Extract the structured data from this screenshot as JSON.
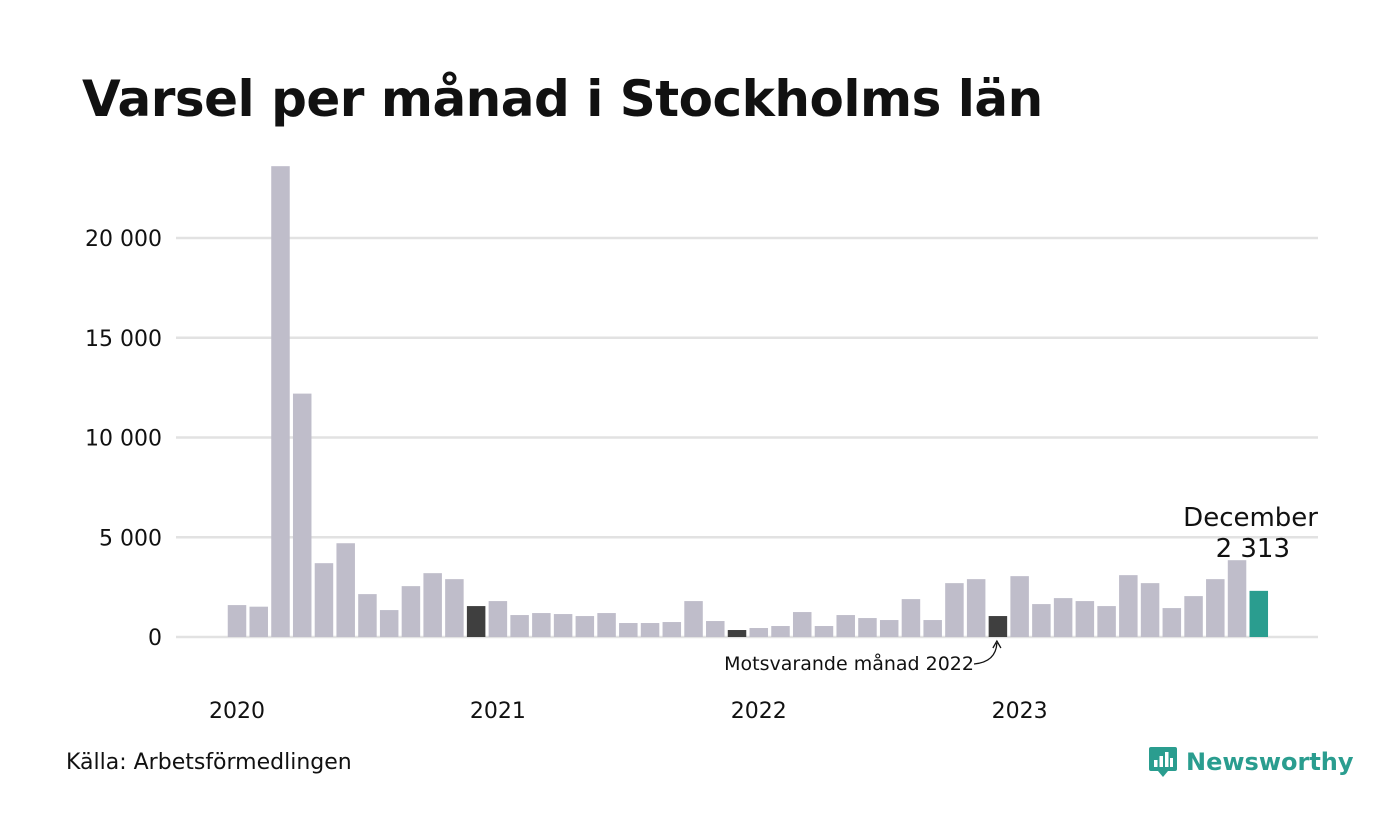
{
  "chart_data": {
    "type": "bar",
    "title": "Varsel per månad i Stockholms län",
    "x_tick_labels": [
      "2020",
      "2021",
      "2022",
      "2023"
    ],
    "y_tick_labels": [
      "0",
      "5 000",
      "10 000",
      "15 000",
      "20 000"
    ],
    "y_ticks": [
      0,
      5000,
      10000,
      15000,
      20000
    ],
    "ylim": [
      0,
      24000
    ],
    "grid": true,
    "start_month": "2020-01",
    "values": [
      1600,
      1520,
      23600,
      12200,
      3700,
      4700,
      2150,
      1350,
      2550,
      3200,
      2900,
      1550,
      1800,
      1100,
      1200,
      1150,
      1050,
      1200,
      700,
      700,
      750,
      1800,
      800,
      350,
      450,
      550,
      1250,
      550,
      1100,
      950,
      850,
      1900,
      850,
      2700,
      2900,
      1050,
      3050,
      1650,
      1950,
      1800,
      1550,
      3100,
      2700,
      1450,
      2050,
      2900,
      3850,
      2313
    ],
    "colors": {
      "default": "#bfbdca",
      "comparison": "#3f3f3f",
      "highlight": "#2a9d8f",
      "grid": "#e2e2e2"
    },
    "comparison_indices": [
      11,
      23,
      35
    ],
    "highlight_index": 47,
    "annotations": {
      "highlight_label": "December",
      "highlight_value": "2 313",
      "comparison_label": "Motsvarande månad 2022"
    }
  },
  "footer": {
    "source": "Källa: Arbetsförmedlingen",
    "logo_text": "Newsworthy",
    "logo_icon": "newsworthy-bar-chart-icon"
  }
}
